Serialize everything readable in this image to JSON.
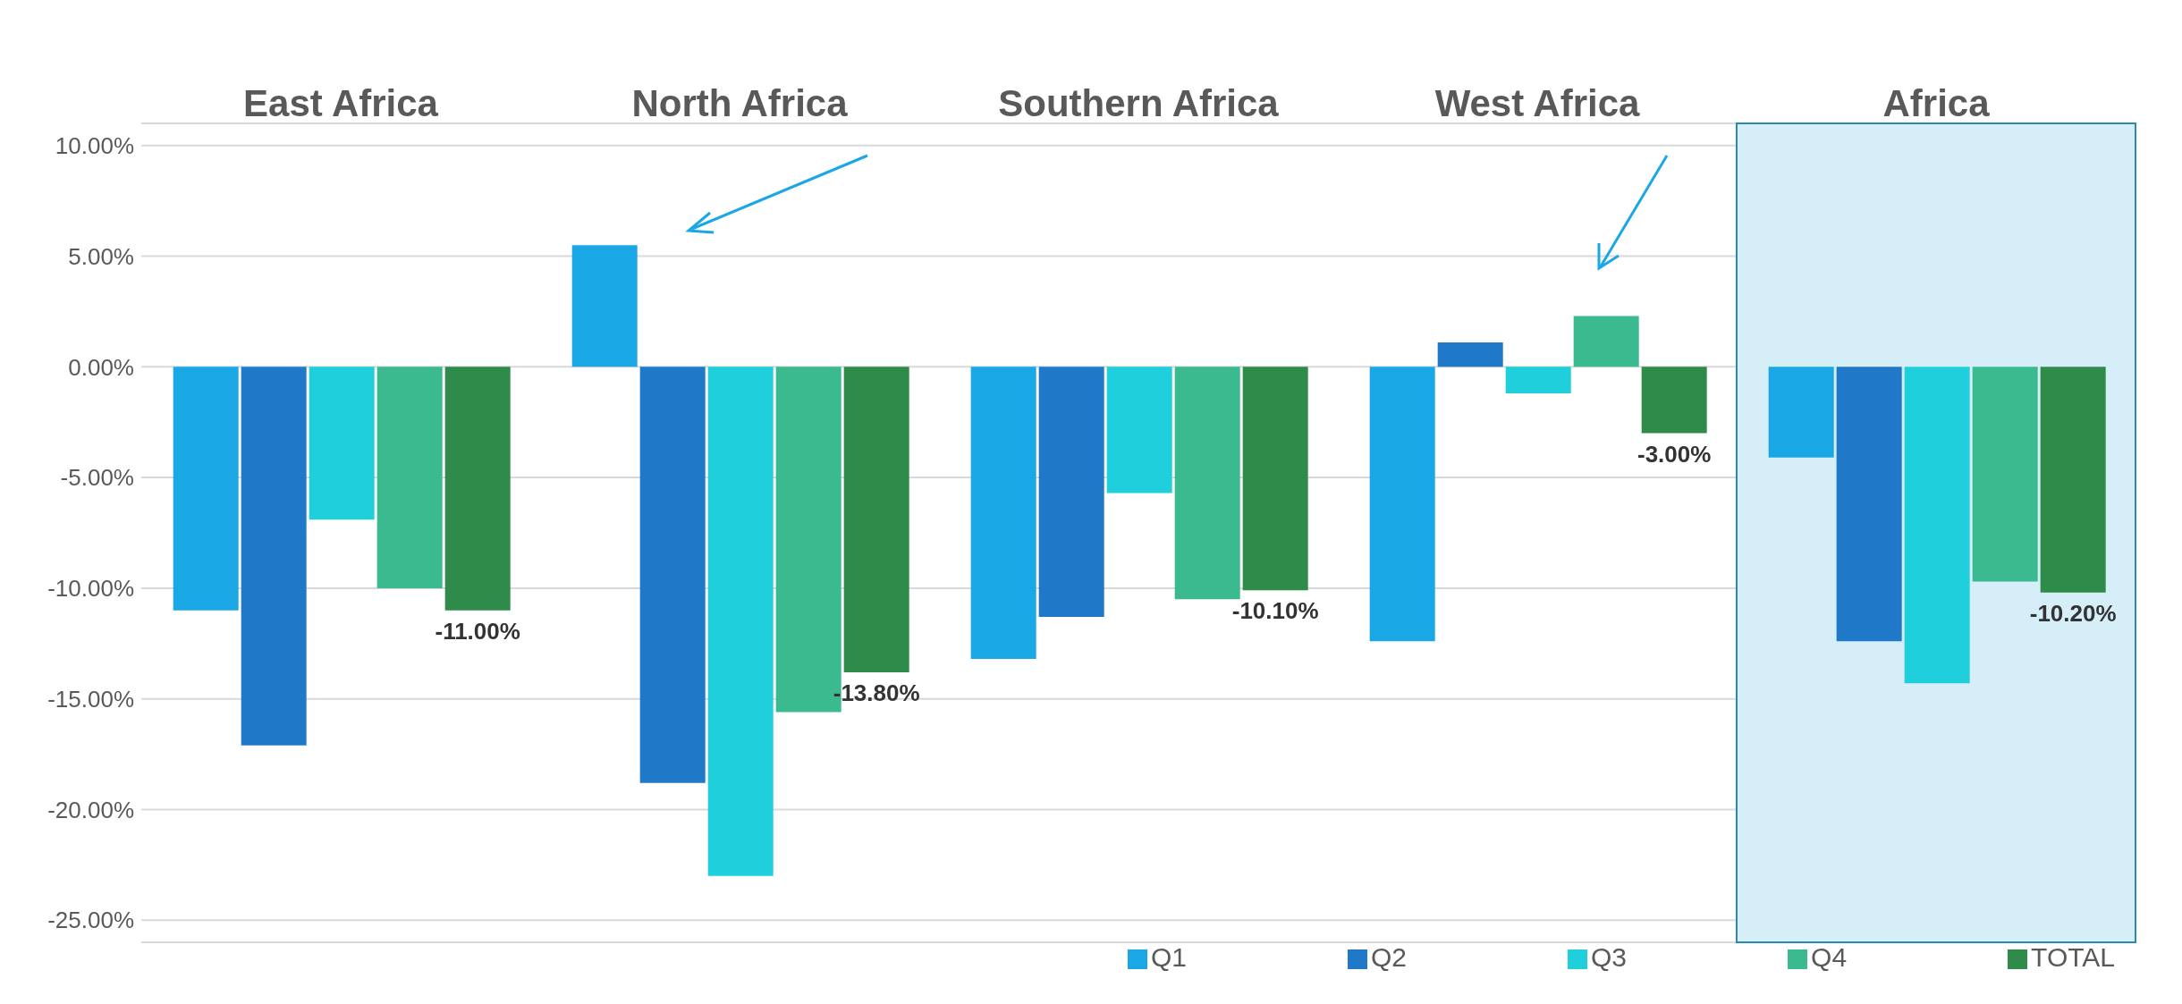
{
  "chart_data": {
    "type": "bar",
    "categories": [
      "East Africa",
      "North Africa",
      "Southern Africa",
      "West Africa",
      "Africa"
    ],
    "series": [
      {
        "name": "Q1",
        "color": "#1aa7e6",
        "values": [
          -11.0,
          5.5,
          -13.2,
          -12.4,
          -4.1
        ]
      },
      {
        "name": "Q2",
        "color": "#1f78c8",
        "values": [
          -17.1,
          -18.8,
          -11.3,
          1.1,
          -12.4
        ]
      },
      {
        "name": "Q3",
        "color": "#1fcfdc",
        "values": [
          -6.9,
          -23.0,
          -5.7,
          -1.2,
          -14.3
        ]
      },
      {
        "name": "Q4",
        "color": "#3bb98f",
        "values": [
          -10.0,
          -15.6,
          -10.5,
          2.3,
          -9.7
        ]
      },
      {
        "name": "TOTAL",
        "color": "#2e8b4a",
        "values": [
          -11.0,
          -13.8,
          -10.1,
          -3.0,
          -10.2
        ],
        "value_labels": [
          "-11.00%",
          "-13.80%",
          "-10.10%",
          "-3.00%",
          "-10.20%"
        ]
      }
    ],
    "ylim": [
      -26,
      11
    ],
    "yticks": [
      {
        "value": -25,
        "label": "-25.00%"
      },
      {
        "value": -20,
        "label": "-20.00%"
      },
      {
        "value": -15,
        "label": "-15.00%"
      },
      {
        "value": -10,
        "label": "-10.00%"
      },
      {
        "value": -5,
        "label": "-5.00%"
      },
      {
        "value": 0,
        "label": "0.00%"
      },
      {
        "value": 5,
        "label": "5.00%"
      },
      {
        "value": 10,
        "label": "10.00%"
      }
    ],
    "grid": "y",
    "legend": "bottom",
    "bands": [
      {
        "axis": "x",
        "from": "Africa",
        "to": "Africa",
        "color": "#d5eef8"
      }
    ]
  }
}
